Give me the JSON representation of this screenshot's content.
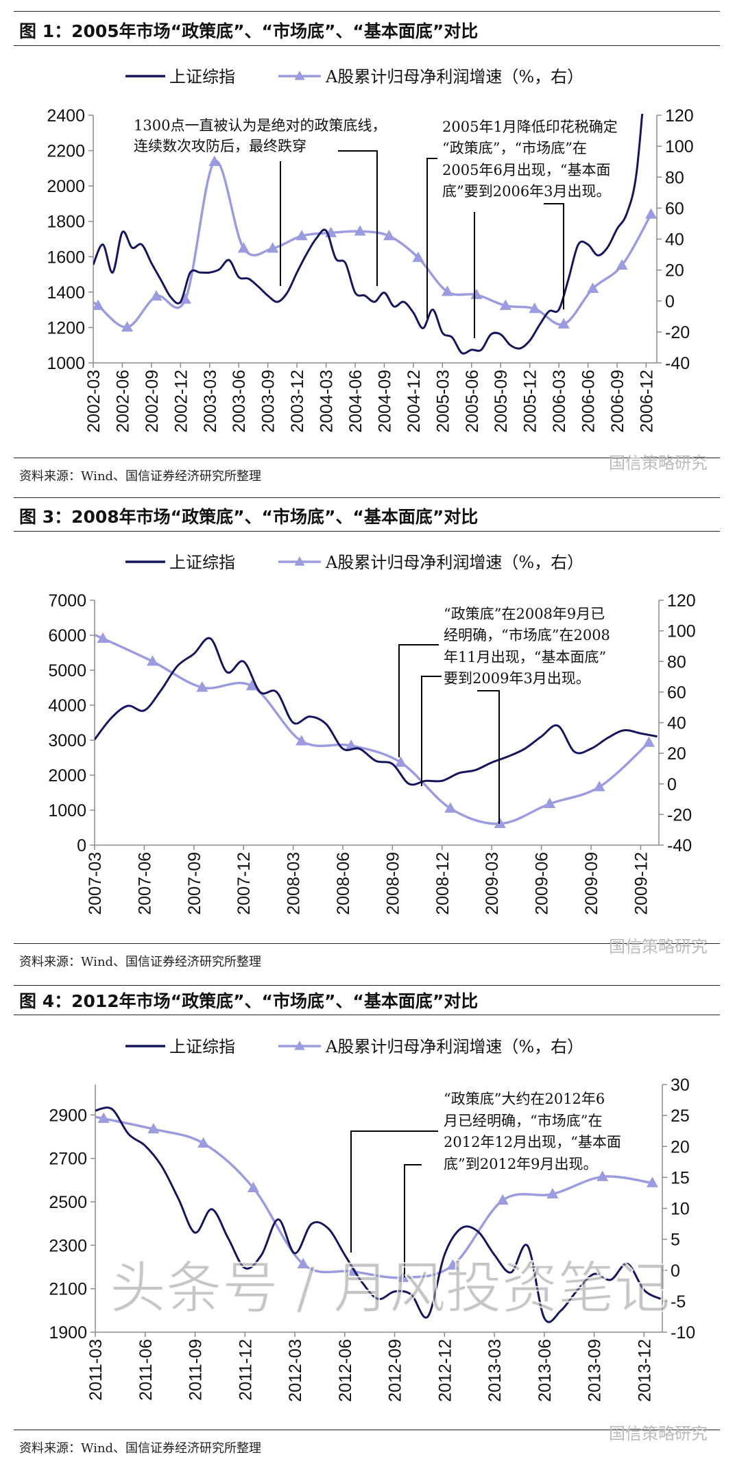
{
  "figures": [
    {
      "title": "图 1：2005年市场“政策底”、“市场底”、“基本面底”对比",
      "source": "资料来源：Wind、国信证券经济研究所整理",
      "watermark": "国信策略研究",
      "annotations": [
        [
          "1300点一直被认为是绝对的政策底线，",
          "连续数次攻防后，最终跌穿"
        ],
        [
          "2005年1月降低印花税确定",
          "“政策底”，“市场底”在",
          "2005年6月出现，“基本面",
          "底”要到2006年3月出现。"
        ]
      ]
    },
    {
      "title": "图 3：2008年市场“政策底”、“市场底”、“基本面底”对比",
      "source": "资料来源：Wind、国信证券经济研究所整理",
      "watermark": "国信策略研究",
      "annotations": [
        [
          "“政策底”在2008年9月已",
          "经明确，“市场底”在2008",
          "年11月出现，“基本面底”",
          "要到2009年3月出现。"
        ]
      ]
    },
    {
      "title": "图 4：2012年市场“政策底”、“市场底”、“基本面底”对比",
      "source": "资料来源：Wind、国信证券经济研究所整理",
      "watermark": "国信策略研究",
      "annotations": [
        [
          "“政策底”大约在2012年6",
          "月已经明确，“市场底”在",
          "2012年12月出现，“基本面",
          "底”到2012年9月出现。"
        ]
      ]
    }
  ],
  "overlay_watermark": "头条号 / 月风投资笔记",
  "colors": {
    "index": "#15155e",
    "profit": "#9b9be0",
    "axis": "#8a8a8a"
  },
  "chart_data": [
    {
      "type": "line",
      "title": "图 1：2005年市场“政策底”、“市场底”、“基本面底”对比",
      "categories": [
        "2002-03",
        "2002-06",
        "2002-09",
        "2002-12",
        "2003-03",
        "2003-06",
        "2003-09",
        "2003-12",
        "2004-03",
        "2004-06",
        "2004-09",
        "2004-12",
        "2005-03",
        "2005-06",
        "2005-09",
        "2005-12",
        "2006-03",
        "2006-06",
        "2006-09",
        "2006-12"
      ],
      "ylim_left": [
        1000,
        2400
      ],
      "yticks_left": [
        1000,
        1200,
        1400,
        1600,
        1800,
        2000,
        2200,
        2400
      ],
      "ylim_right": [
        -40,
        120
      ],
      "yticks_right": [
        -40,
        -20,
        0,
        20,
        40,
        60,
        80,
        100,
        120
      ],
      "legend": "top",
      "series": [
        {
          "name": "上证综指",
          "axis": "left",
          "x": [
            "2002-03",
            "2002-04",
            "2002-05",
            "2002-06",
            "2002-07",
            "2002-08",
            "2002-09",
            "2002-10",
            "2002-11",
            "2002-12",
            "2003-01",
            "2003-02",
            "2003-03",
            "2003-04",
            "2003-05",
            "2003-06",
            "2003-07",
            "2003-08",
            "2003-09",
            "2003-10",
            "2003-11",
            "2003-12",
            "2004-01",
            "2004-02",
            "2004-03",
            "2004-04",
            "2004-05",
            "2004-06",
            "2004-07",
            "2004-08",
            "2004-09",
            "2004-10",
            "2004-11",
            "2004-12",
            "2005-01",
            "2005-02",
            "2005-03",
            "2005-04",
            "2005-05",
            "2005-06",
            "2005-07",
            "2005-08",
            "2005-09",
            "2005-10",
            "2005-11",
            "2005-12",
            "2006-01",
            "2006-02",
            "2006-03",
            "2006-04",
            "2006-05",
            "2006-06",
            "2006-07",
            "2006-08",
            "2006-09",
            "2006-10",
            "2006-11",
            "2006-12"
          ],
          "values": [
            1555,
            1669,
            1511,
            1739,
            1651,
            1669,
            1564,
            1467,
            1371,
            1345,
            1511,
            1511,
            1511,
            1529,
            1581,
            1485,
            1476,
            1432,
            1380,
            1345,
            1397,
            1511,
            1616,
            1704,
            1748,
            1590,
            1564,
            1397,
            1380,
            1345,
            1397,
            1319,
            1345,
            1284,
            1196,
            1301,
            1170,
            1144,
            1056,
            1074,
            1074,
            1161,
            1161,
            1100,
            1082,
            1126,
            1214,
            1292,
            1301,
            1476,
            1669,
            1669,
            1608,
            1651,
            1757,
            1844,
            2072,
            2675
          ]
        },
        {
          "name": "A股累计归母净利润增速（%，右）",
          "axis": "right",
          "x": [
            "2002-03",
            "2002-06",
            "2002-09",
            "2002-12",
            "2003-03",
            "2003-06",
            "2003-09",
            "2003-12",
            "2004-03",
            "2004-06",
            "2004-09",
            "2004-12",
            "2005-03",
            "2005-06",
            "2005-09",
            "2005-12",
            "2006-03",
            "2006-06",
            "2006-09",
            "2006-12"
          ],
          "values": [
            -3,
            -17,
            3,
            1,
            90,
            34,
            34,
            42,
            44,
            45,
            42,
            28,
            6,
            4,
            -3,
            -5,
            -15,
            8,
            23,
            56
          ]
        }
      ]
    },
    {
      "type": "line",
      "title": "图 3：2008年市场“政策底”、“市场底”、“基本面底”对比",
      "categories": [
        "2007-03",
        "2007-06",
        "2007-09",
        "2007-12",
        "2008-03",
        "2008-06",
        "2008-09",
        "2008-12",
        "2009-03",
        "2009-06",
        "2009-09",
        "2009-12"
      ],
      "ylim_left": [
        0,
        7000
      ],
      "yticks_left": [
        0,
        1000,
        2000,
        3000,
        4000,
        5000,
        6000,
        7000
      ],
      "ylim_right": [
        -40,
        120
      ],
      "yticks_right": [
        -40,
        -20,
        0,
        20,
        40,
        60,
        80,
        100,
        120
      ],
      "legend": "top",
      "series": [
        {
          "name": "上证综指",
          "axis": "left",
          "x": [
            "2007-03",
            "2007-04",
            "2007-05",
            "2007-06",
            "2007-07",
            "2007-08",
            "2007-09",
            "2007-10",
            "2007-11",
            "2007-12",
            "2008-01",
            "2008-02",
            "2008-03",
            "2008-04",
            "2008-05",
            "2008-06",
            "2008-07",
            "2008-08",
            "2008-09",
            "2008-10",
            "2008-11",
            "2008-12",
            "2009-01",
            "2009-02",
            "2009-03",
            "2009-04",
            "2009-05",
            "2009-06",
            "2009-07",
            "2009-08",
            "2009-09",
            "2009-10",
            "2009-11",
            "2009-12",
            "2010-01"
          ],
          "values": [
            3019,
            3630,
            3980,
            3850,
            4418,
            5118,
            5468,
            5906,
            4943,
            5249,
            4375,
            4375,
            3500,
            3675,
            3456,
            2756,
            2756,
            2406,
            2318,
            1750,
            1837,
            1837,
            2056,
            2143,
            2362,
            2537,
            2756,
            3106,
            3412,
            2668,
            2756,
            3062,
            3281,
            3193,
            3106
          ]
        },
        {
          "name": "A股累计归母净利润增速（%，右）",
          "axis": "right",
          "x": [
            "2007-03",
            "2007-06",
            "2007-09",
            "2007-12",
            "2008-03",
            "2008-06",
            "2008-09",
            "2008-12",
            "2009-03",
            "2009-06",
            "2009-09",
            "2009-12"
          ],
          "values": [
            95,
            80,
            63,
            64,
            28,
            25,
            14,
            -16,
            -26,
            -13,
            -2,
            27
          ]
        }
      ]
    },
    {
      "type": "line",
      "title": "图 4：2012年市场“政策底”、“市场底”、“基本面底”对比",
      "categories": [
        "2011-03",
        "2011-06",
        "2011-09",
        "2011-12",
        "2012-03",
        "2012-06",
        "2012-09",
        "2012-12",
        "2013-03",
        "2013-06",
        "2013-09",
        "2013-12"
      ],
      "ylim_left": [
        1900,
        3040
      ],
      "yticks_left": [
        1900,
        2100,
        2300,
        2500,
        2700,
        2900
      ],
      "ylim_right": [
        -10,
        30
      ],
      "yticks_right": [
        -10,
        -5,
        0,
        5,
        10,
        15,
        20,
        25,
        30
      ],
      "legend": "top",
      "series": [
        {
          "name": "上证综指",
          "axis": "left",
          "x": [
            "2011-03",
            "2011-04",
            "2011-05",
            "2011-06",
            "2011-07",
            "2011-08",
            "2011-09",
            "2011-10",
            "2011-11",
            "2011-12",
            "2012-01",
            "2012-02",
            "2012-03",
            "2012-04",
            "2012-05",
            "2012-06",
            "2012-07",
            "2012-08",
            "2012-09",
            "2012-10",
            "2012-11",
            "2012-12",
            "2013-01",
            "2013-02",
            "2013-03",
            "2013-04",
            "2013-05",
            "2013-06",
            "2013-07",
            "2013-08",
            "2013-09",
            "2013-10",
            "2013-11",
            "2013-12",
            "2014-01"
          ],
          "values": [
            2920,
            2927,
            2812,
            2758,
            2663,
            2514,
            2358,
            2466,
            2331,
            2195,
            2256,
            2419,
            2263,
            2398,
            2378,
            2256,
            2134,
            2053,
            2087,
            2073,
            1972,
            2256,
            2378,
            2364,
            2256,
            2175,
            2297,
            1965,
            1999,
            2094,
            2168,
            2141,
            2215,
            2094,
            2053
          ]
        },
        {
          "name": "A股累计归母净利润增速（%，右）",
          "axis": "right",
          "x": [
            "2011-03",
            "2011-06",
            "2011-09",
            "2011-12",
            "2012-03",
            "2012-06",
            "2012-09",
            "2012-12",
            "2013-03",
            "2013-06",
            "2013-09",
            "2013-12"
          ],
          "values": [
            24.5,
            22.8,
            20.5,
            13.3,
            1.0,
            -0.2,
            -1.2,
            0.8,
            11.3,
            12.3,
            15.1,
            14.1
          ]
        }
      ]
    }
  ]
}
